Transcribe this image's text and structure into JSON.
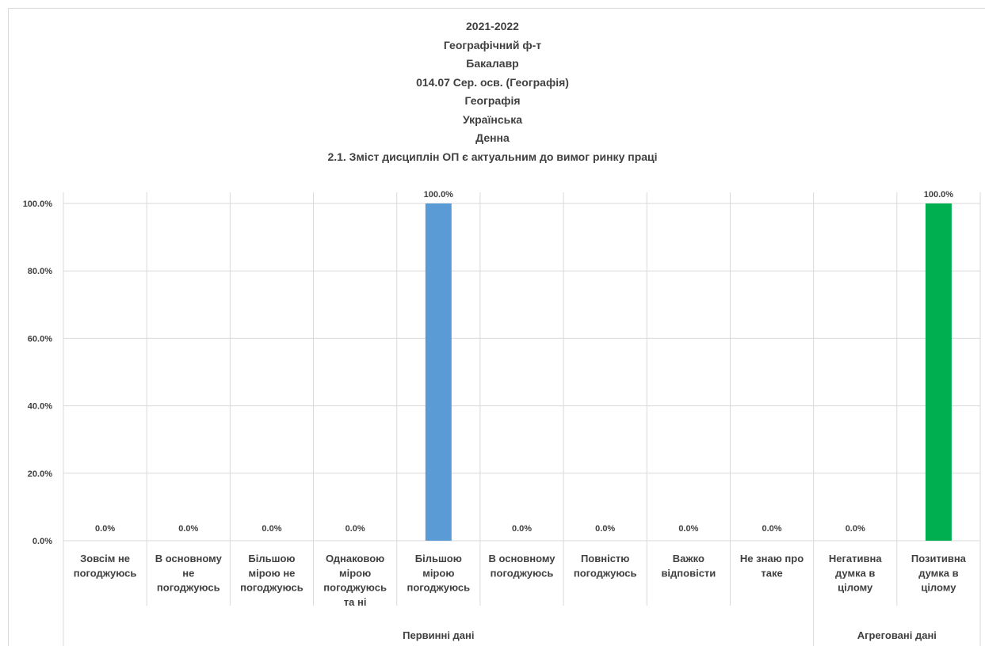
{
  "title_lines": [
    "2021-2022",
    "Географічний ф-т",
    "Бакалавр",
    "014.07 Сер. осв. (Географія)",
    "Географія",
    "Українська",
    "Денна",
    "2.1. Зміст дисциплін ОП є актуальним до вимог ринку праці"
  ],
  "chart_data": {
    "type": "bar",
    "categories": [
      [
        "Зовсім не",
        "погоджуюсь"
      ],
      [
        "В основному",
        "не",
        "погоджуюсь"
      ],
      [
        "Більшою",
        "мірою не",
        "погоджуюсь"
      ],
      [
        "Однаковою",
        "мірою",
        "погоджуюсь",
        "та ні"
      ],
      [
        "Більшою",
        "мірою",
        "погоджуюсь"
      ],
      [
        "В основному",
        "погоджуюсь"
      ],
      [
        "Повністю",
        "погоджуюсь"
      ],
      [
        "Важко",
        "відповісти"
      ],
      [
        "Не знаю про",
        "таке"
      ],
      [
        "Негативна",
        "думка в",
        "цілому"
      ],
      [
        "Позитивна",
        "думка в",
        "цілому"
      ]
    ],
    "values": [
      0,
      0,
      0,
      0,
      100,
      0,
      0,
      0,
      0,
      0,
      100
    ],
    "value_labels": [
      "0.0%",
      "0.0%",
      "0.0%",
      "0.0%",
      "100.0%",
      "0.0%",
      "0.0%",
      "0.0%",
      "0.0%",
      "0.0%",
      "100.0%"
    ],
    "bar_colors": [
      "#5b9bd5",
      "#5b9bd5",
      "#5b9bd5",
      "#5b9bd5",
      "#5b9bd5",
      "#5b9bd5",
      "#5b9bd5",
      "#5b9bd5",
      "#5b9bd5",
      "#00b050",
      "#00b050"
    ],
    "groups": [
      {
        "label": "Первинні дані",
        "count": 9
      },
      {
        "label": "Агреговані дані",
        "count": 2
      }
    ],
    "y_ticks": [
      "0.0%",
      "20.0%",
      "40.0%",
      "60.0%",
      "80.0%",
      "100.0%"
    ],
    "ylim": [
      0,
      100
    ],
    "grid": true,
    "legend": "none"
  }
}
